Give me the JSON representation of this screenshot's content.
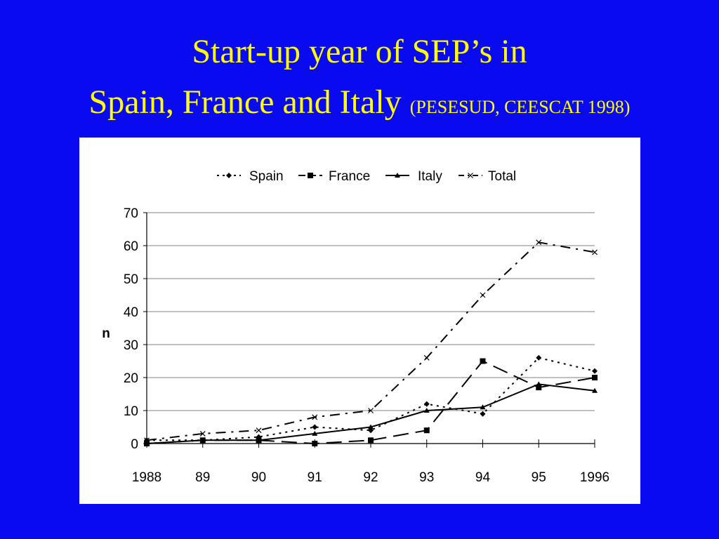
{
  "title": {
    "line1": "Start-up year of SEP’s  in",
    "line2": "Spain, France and Italy",
    "citation": "(PESESUD, CEESCAT 1998)"
  },
  "colors": {
    "background": "#0a0af0",
    "title": "#ffff00",
    "panel": "#ffffff",
    "ink": "#000000",
    "grid": "#808080"
  },
  "chart_data": {
    "type": "line",
    "categories": [
      "1988",
      "89",
      "90",
      "91",
      "92",
      "93",
      "94",
      "95",
      "1996"
    ],
    "ylabel": "n",
    "xlabel": "",
    "ylim": [
      0,
      70
    ],
    "yticks": [
      0,
      10,
      20,
      30,
      40,
      50,
      60,
      70
    ],
    "grid": "horizontal",
    "legend": "top-center",
    "series": [
      {
        "name": "Spain",
        "marker": "diamond",
        "dash": "dotted",
        "values": [
          1,
          1,
          2,
          5,
          4,
          12,
          9,
          26,
          22
        ]
      },
      {
        "name": "France",
        "marker": "square",
        "dash": "dashed",
        "values": [
          0,
          1,
          1,
          0,
          1,
          4,
          25,
          17,
          20
        ]
      },
      {
        "name": "Italy",
        "marker": "triangle",
        "dash": "solid",
        "values": [
          0,
          1,
          1,
          3,
          5,
          10,
          11,
          18,
          16
        ]
      },
      {
        "name": "Total",
        "marker": "x",
        "dash": "dash-dot",
        "values": [
          1,
          3,
          4,
          8,
          10,
          26,
          45,
          61,
          58
        ]
      }
    ]
  }
}
